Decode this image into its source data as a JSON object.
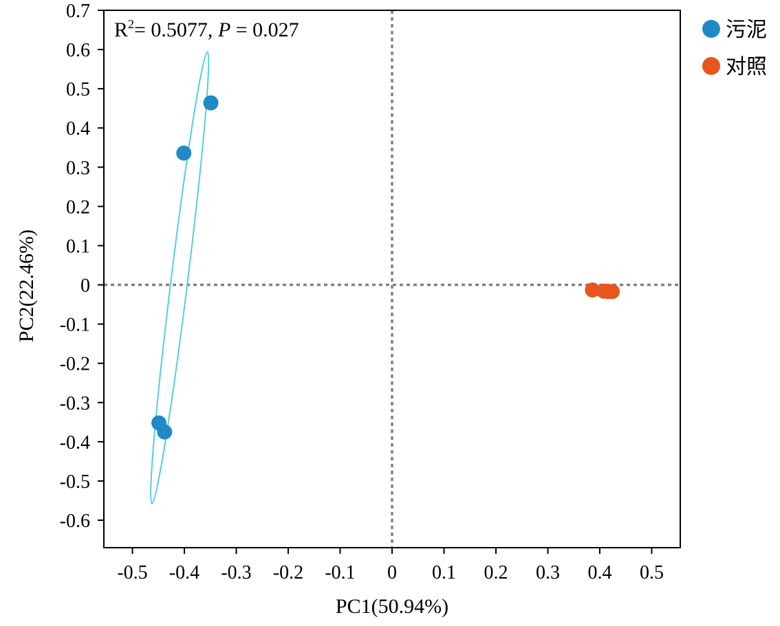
{
  "chart_data": {
    "type": "scatter",
    "xlabel": "PC1(50.94%)",
    "ylabel": "PC2(22.46%)",
    "xlim": [
      -0.555,
      0.555
    ],
    "ylim": [
      -0.67,
      0.7
    ],
    "x_ticks": [
      -0.5,
      -0.4,
      -0.3,
      -0.2,
      -0.1,
      0,
      0.1,
      0.2,
      0.3,
      0.4,
      0.5
    ],
    "x_tick_labels": [
      "-0.5",
      "-0.4",
      "-0.3",
      "-0.2",
      "-0.1",
      "0",
      "0.1",
      "0.2",
      "0.3",
      "0.4",
      "0.5"
    ],
    "y_ticks": [
      0.7,
      0.6,
      0.5,
      0.4,
      0.3,
      0.2,
      0.1,
      0,
      -0.1,
      -0.2,
      -0.3,
      -0.4,
      -0.5,
      -0.6
    ],
    "y_tick_labels": [
      "0.7",
      "0.6",
      "0.5",
      "0.4",
      "0.3",
      "0.2",
      "0.1",
      "0",
      "-0.1",
      "-0.2",
      "-0.3",
      "-0.4",
      "-0.5",
      "-0.6"
    ],
    "annotation": {
      "r2_prefix": "R",
      "r2_sup": "2",
      "r2_value": "= 0.5077, ",
      "p_label": "P",
      "p_value": " = 0.027"
    },
    "reference_lines": {
      "x": 0,
      "y": 0,
      "style": "dotted",
      "color": "#808080"
    },
    "legend": {
      "position": "right-top"
    },
    "series": [
      {
        "name": "污泥",
        "color": "#1F8AC7",
        "points": [
          {
            "x": -0.349,
            "y": 0.464
          },
          {
            "x": -0.401,
            "y": 0.336
          },
          {
            "x": -0.449,
            "y": -0.352
          },
          {
            "x": -0.438,
            "y": -0.375
          }
        ],
        "ellipse": {
          "color": "#4FD1DC",
          "center": {
            "x": -0.409,
            "y": 0.018
          },
          "axis_end_a": {
            "x": -0.356,
            "y": 0.594
          },
          "axis_end_b": {
            "x": -0.463,
            "y": -0.558
          },
          "semi_minor": 0.016
        }
      },
      {
        "name": "对照",
        "color": "#E8561E",
        "points": [
          {
            "x": 0.386,
            "y": -0.013
          },
          {
            "x": 0.408,
            "y": -0.016
          },
          {
            "x": 0.416,
            "y": -0.017
          },
          {
            "x": 0.424,
            "y": -0.017
          }
        ]
      }
    ]
  }
}
